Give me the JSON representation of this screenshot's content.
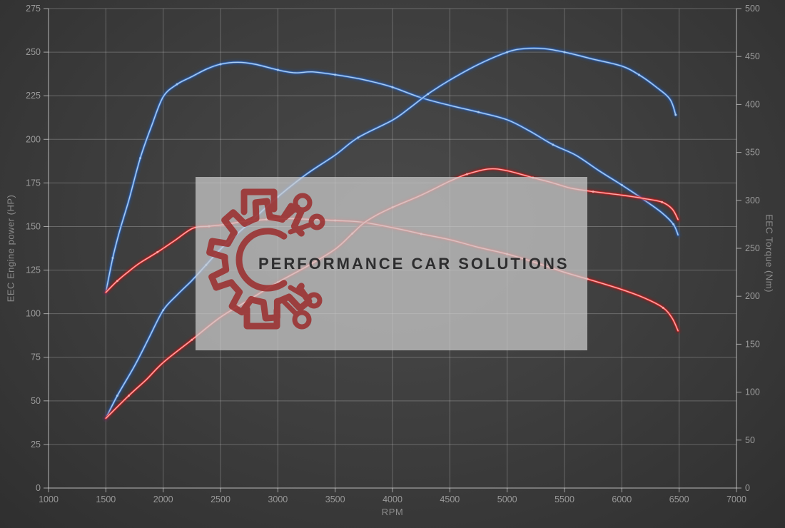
{
  "chart_data": {
    "type": "line",
    "title": "",
    "xlabel": "RPM",
    "ylabel_left": "EEC Engine power (HP)",
    "ylabel_right": "EEC Torque (Nm)",
    "x_range": [
      1000,
      7000
    ],
    "x_ticks": [
      1000,
      1500,
      2000,
      2500,
      3000,
      3500,
      4000,
      4500,
      5000,
      5500,
      6000,
      6500,
      7000
    ],
    "y_left_range": [
      0,
      275
    ],
    "y_left_ticks": [
      0,
      25,
      50,
      75,
      100,
      125,
      150,
      175,
      200,
      225,
      250,
      275
    ],
    "y_right_range": [
      0,
      500
    ],
    "y_right_ticks": [
      0,
      50,
      100,
      150,
      200,
      250,
      300,
      350,
      400,
      450,
      500
    ],
    "grid": true,
    "legend": "none",
    "series": [
      {
        "name": "torque-tuned-blue",
        "axis": "right",
        "unit": "Nm",
        "glow": "#1e56b0",
        "mid": "#3a72c8",
        "core": "#aacdf2",
        "points": [
          [
            1500,
            204
          ],
          [
            1560,
            240
          ],
          [
            1620,
            268
          ],
          [
            1700,
            300
          ],
          [
            1800,
            344
          ],
          [
            1900,
            378
          ],
          [
            2000,
            408
          ],
          [
            2120,
            421
          ],
          [
            2250,
            429
          ],
          [
            2380,
            437
          ],
          [
            2500,
            442
          ],
          [
            2650,
            444
          ],
          [
            2800,
            442
          ],
          [
            3000,
            436
          ],
          [
            3150,
            433
          ],
          [
            3300,
            434
          ],
          [
            3500,
            431
          ],
          [
            3700,
            427
          ],
          [
            3850,
            423
          ],
          [
            4000,
            418
          ],
          [
            4250,
            407
          ],
          [
            4500,
            399
          ],
          [
            4750,
            392
          ],
          [
            5000,
            384
          ],
          [
            5200,
            372
          ],
          [
            5400,
            358
          ],
          [
            5600,
            347
          ],
          [
            5800,
            331
          ],
          [
            6000,
            316
          ],
          [
            6200,
            300
          ],
          [
            6350,
            287
          ],
          [
            6450,
            275
          ],
          [
            6490,
            264
          ]
        ]
      },
      {
        "name": "power-tuned-blue",
        "axis": "left",
        "unit": "HP",
        "glow": "#1e56b0",
        "mid": "#3a72c8",
        "core": "#aacdf2",
        "points": [
          [
            1500,
            40
          ],
          [
            1600,
            53
          ],
          [
            1750,
            70
          ],
          [
            1875,
            86
          ],
          [
            2000,
            102
          ],
          [
            2125,
            111
          ],
          [
            2250,
            119
          ],
          [
            2375,
            128
          ],
          [
            2500,
            137
          ],
          [
            2750,
            152
          ],
          [
            3000,
            167
          ],
          [
            3250,
            180
          ],
          [
            3500,
            191
          ],
          [
            3700,
            201
          ],
          [
            4000,
            211
          ],
          [
            4150,
            218
          ],
          [
            4310,
            226
          ],
          [
            4500,
            234
          ],
          [
            4750,
            243
          ],
          [
            5000,
            250
          ],
          [
            5150,
            252
          ],
          [
            5320,
            252
          ],
          [
            5500,
            250
          ],
          [
            5750,
            246
          ],
          [
            6000,
            242
          ],
          [
            6150,
            237
          ],
          [
            6300,
            230
          ],
          [
            6420,
            223
          ],
          [
            6470,
            214
          ]
        ]
      },
      {
        "name": "torque-stock-red",
        "axis": "right",
        "unit": "Nm",
        "glow": "#b01414",
        "mid": "#dc2a2a",
        "core": "#ffaaaa",
        "points": [
          [
            1500,
            204
          ],
          [
            1600,
            216
          ],
          [
            1700,
            226
          ],
          [
            1800,
            235
          ],
          [
            1950,
            246
          ],
          [
            2100,
            258
          ],
          [
            2260,
            271
          ],
          [
            2400,
            273
          ],
          [
            2550,
            275
          ],
          [
            2700,
            278
          ],
          [
            2900,
            280
          ],
          [
            3100,
            281
          ],
          [
            3300,
            280
          ],
          [
            3500,
            279
          ],
          [
            3750,
            277
          ],
          [
            4060,
            270
          ],
          [
            4250,
            265
          ],
          [
            4500,
            259
          ],
          [
            4750,
            251
          ],
          [
            5000,
            244
          ],
          [
            5250,
            235
          ],
          [
            5500,
            225
          ],
          [
            5700,
            218
          ],
          [
            6000,
            207
          ],
          [
            6200,
            198
          ],
          [
            6360,
            188
          ],
          [
            6440,
            177
          ],
          [
            6490,
            164
          ]
        ]
      },
      {
        "name": "power-stock-red",
        "axis": "left",
        "unit": "HP",
        "glow": "#b01414",
        "mid": "#dc2a2a",
        "core": "#ffaaaa",
        "points": [
          [
            1500,
            40
          ],
          [
            1700,
            53
          ],
          [
            1850,
            62
          ],
          [
            2000,
            72
          ],
          [
            2250,
            85
          ],
          [
            2500,
            98
          ],
          [
            2750,
            108
          ],
          [
            3000,
            118
          ],
          [
            3250,
            127
          ],
          [
            3500,
            137
          ],
          [
            3650,
            146
          ],
          [
            3750,
            152
          ],
          [
            3875,
            157
          ],
          [
            4000,
            161
          ],
          [
            4250,
            168
          ],
          [
            4500,
            176
          ],
          [
            4650,
            180
          ],
          [
            4840,
            183
          ],
          [
            5000,
            182
          ],
          [
            5225,
            178
          ],
          [
            5400,
            175
          ],
          [
            5555,
            172
          ],
          [
            5750,
            170
          ],
          [
            6000,
            168
          ],
          [
            6200,
            166
          ],
          [
            6350,
            164
          ],
          [
            6440,
            160
          ],
          [
            6490,
            154
          ]
        ]
      }
    ]
  },
  "watermark": {
    "text": "PERFORMANCE CAR SOLUTIONS"
  },
  "colors": {
    "background": "#3d3d3d",
    "grid": "rgba(214,214,214,0.30)",
    "axis": "rgba(228,228,228,0.65)",
    "tick_label": "#9a9a9a",
    "axis_title": "#8d8d8d",
    "watermark_box": "rgba(205,205,205,0.72)",
    "watermark_text": "#2e2e2f",
    "logo": "#9b2c2c"
  }
}
